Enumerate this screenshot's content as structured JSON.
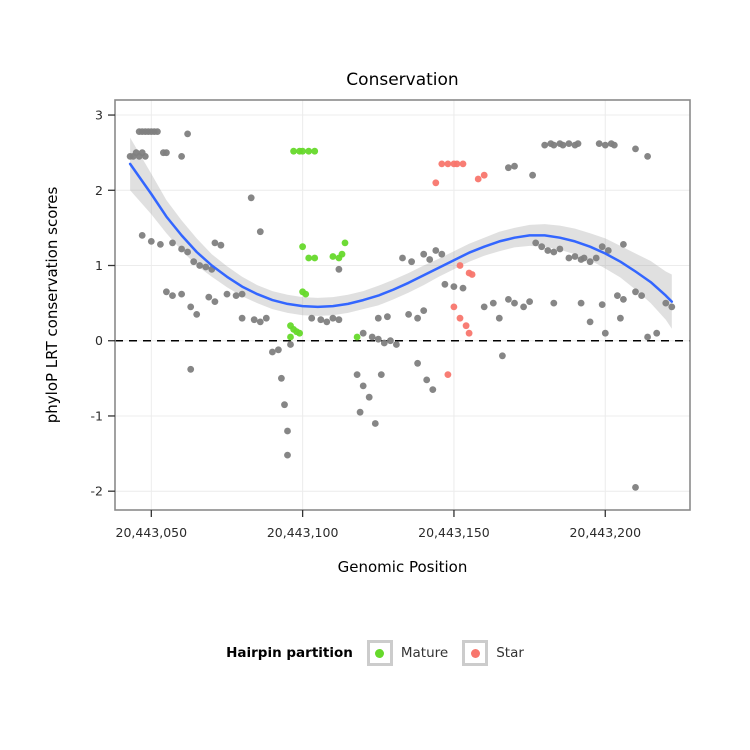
{
  "chart_data": {
    "type": "scatter",
    "title": "Conservation",
    "xlabel": "Genomic Position",
    "ylabel": "phyloP LRT conservation scores",
    "xlim": [
      20443038,
      20443228
    ],
    "ylim": [
      -2.25,
      3.2
    ],
    "grid": true,
    "reference_line": {
      "y": 0,
      "style": "dashed",
      "color": "#000000"
    },
    "x_ticks": [
      {
        "value": 20443050,
        "label": "20,443,050"
      },
      {
        "value": 20443100,
        "label": "20,443,100"
      },
      {
        "value": 20443150,
        "label": "20,443,150"
      },
      {
        "value": 20443200,
        "label": "20,443,200"
      }
    ],
    "y_ticks": [
      {
        "value": -2,
        "label": "-2"
      },
      {
        "value": -1,
        "label": "-1"
      },
      {
        "value": 0,
        "label": "0"
      },
      {
        "value": 1,
        "label": "1"
      },
      {
        "value": 2,
        "label": "2"
      },
      {
        "value": 3,
        "label": "3"
      }
    ],
    "colors": {
      "other": "#808080",
      "mature": "#66D92B",
      "star": "#F8766D",
      "smooth_line": "#3366FF",
      "band": "#999999",
      "band_opacity": 0.3,
      "grid": "#ECECEC",
      "panel_border": "#8A8A8A",
      "tick": "#333333"
    },
    "legend": {
      "title": "Hairpin partition",
      "position": "bottom",
      "entries": [
        {
          "label": "Mature",
          "color": "#66D92B"
        },
        {
          "label": "Star",
          "color": "#F8766D"
        }
      ]
    },
    "series": [
      {
        "name": "Other",
        "color": "#808080",
        "points": [
          [
            20443046,
            2.78
          ],
          [
            20443047,
            2.78
          ],
          [
            20443048,
            2.78
          ],
          [
            20443049,
            2.78
          ],
          [
            20443050,
            2.78
          ],
          [
            20443051,
            2.78
          ],
          [
            20443052,
            2.78
          ],
          [
            20443062,
            2.75
          ],
          [
            20443043,
            2.45
          ],
          [
            20443044,
            2.45
          ],
          [
            20443045,
            2.5
          ],
          [
            20443046,
            2.45
          ],
          [
            20443047,
            2.5
          ],
          [
            20443048,
            2.45
          ],
          [
            20443054,
            2.5
          ],
          [
            20443055,
            2.5
          ],
          [
            20443060,
            2.45
          ],
          [
            20443047,
            1.4
          ],
          [
            20443050,
            1.32
          ],
          [
            20443053,
            1.28
          ],
          [
            20443057,
            1.3
          ],
          [
            20443060,
            1.22
          ],
          [
            20443062,
            1.18
          ],
          [
            20443064,
            1.05
          ],
          [
            20443066,
            1.0
          ],
          [
            20443068,
            0.98
          ],
          [
            20443070,
            0.95
          ],
          [
            20443071,
            1.3
          ],
          [
            20443073,
            1.27
          ],
          [
            20443055,
            0.65
          ],
          [
            20443057,
            0.6
          ],
          [
            20443060,
            0.62
          ],
          [
            20443063,
            0.45
          ],
          [
            20443065,
            0.35
          ],
          [
            20443069,
            0.58
          ],
          [
            20443071,
            0.52
          ],
          [
            20443075,
            0.62
          ],
          [
            20443078,
            0.6
          ],
          [
            20443080,
            0.62
          ],
          [
            20443063,
            -0.38
          ],
          [
            20443083,
            1.9
          ],
          [
            20443086,
            1.45
          ],
          [
            20443080,
            0.3
          ],
          [
            20443084,
            0.28
          ],
          [
            20443086,
            0.25
          ],
          [
            20443088,
            0.3
          ],
          [
            20443090,
            -0.15
          ],
          [
            20443092,
            -0.12
          ],
          [
            20443093,
            -0.5
          ],
          [
            20443094,
            -0.85
          ],
          [
            20443095,
            -1.2
          ],
          [
            20443095,
            -1.52
          ],
          [
            20443096,
            -0.05
          ],
          [
            20443103,
            0.3
          ],
          [
            20443106,
            0.28
          ],
          [
            20443108,
            0.25
          ],
          [
            20443110,
            0.3
          ],
          [
            20443112,
            0.28
          ],
          [
            20443112,
            0.95
          ],
          [
            20443120,
            0.1
          ],
          [
            20443123,
            0.05
          ],
          [
            20443125,
            0.02
          ],
          [
            20443127,
            -0.03
          ],
          [
            20443129,
            0.0
          ],
          [
            20443131,
            -0.05
          ],
          [
            20443125,
            0.3
          ],
          [
            20443128,
            0.32
          ],
          [
            20443118,
            -0.45
          ],
          [
            20443120,
            -0.6
          ],
          [
            20443119,
            -0.95
          ],
          [
            20443122,
            -0.75
          ],
          [
            20443124,
            -1.1
          ],
          [
            20443126,
            -0.45
          ],
          [
            20443133,
            1.1
          ],
          [
            20443136,
            1.05
          ],
          [
            20443140,
            1.15
          ],
          [
            20443142,
            1.08
          ],
          [
            20443135,
            0.35
          ],
          [
            20443138,
            0.3
          ],
          [
            20443140,
            0.4
          ],
          [
            20443138,
            -0.3
          ],
          [
            20443141,
            -0.52
          ],
          [
            20443143,
            -0.65
          ],
          [
            20443144,
            1.2
          ],
          [
            20443146,
            1.15
          ],
          [
            20443147,
            0.75
          ],
          [
            20443150,
            0.72
          ],
          [
            20443153,
            0.7
          ],
          [
            20443160,
            0.45
          ],
          [
            20443163,
            0.5
          ],
          [
            20443165,
            0.3
          ],
          [
            20443166,
            -0.2
          ],
          [
            20443168,
            2.3
          ],
          [
            20443170,
            2.32
          ],
          [
            20443176,
            2.2
          ],
          [
            20443180,
            2.6
          ],
          [
            20443182,
            2.62
          ],
          [
            20443183,
            2.6
          ],
          [
            20443185,
            2.62
          ],
          [
            20443186,
            2.6
          ],
          [
            20443188,
            2.62
          ],
          [
            20443190,
            2.6
          ],
          [
            20443191,
            2.62
          ],
          [
            20443198,
            2.62
          ],
          [
            20443200,
            2.6
          ],
          [
            20443202,
            2.62
          ],
          [
            20443203,
            2.6
          ],
          [
            20443210,
            2.55
          ],
          [
            20443214,
            2.45
          ],
          [
            20443177,
            1.3
          ],
          [
            20443179,
            1.25
          ],
          [
            20443181,
            1.2
          ],
          [
            20443183,
            1.18
          ],
          [
            20443185,
            1.22
          ],
          [
            20443188,
            1.1
          ],
          [
            20443190,
            1.12
          ],
          [
            20443192,
            1.08
          ],
          [
            20443193,
            1.1
          ],
          [
            20443195,
            1.05
          ],
          [
            20443197,
            1.1
          ],
          [
            20443199,
            1.25
          ],
          [
            20443201,
            1.2
          ],
          [
            20443206,
            1.28
          ],
          [
            20443168,
            0.55
          ],
          [
            20443170,
            0.5
          ],
          [
            20443173,
            0.45
          ],
          [
            20443175,
            0.52
          ],
          [
            20443183,
            0.5
          ],
          [
            20443192,
            0.5
          ],
          [
            20443199,
            0.48
          ],
          [
            20443204,
            0.6
          ],
          [
            20443206,
            0.55
          ],
          [
            20443210,
            0.65
          ],
          [
            20443212,
            0.6
          ],
          [
            20443220,
            0.5
          ],
          [
            20443222,
            0.45
          ],
          [
            20443195,
            0.25
          ],
          [
            20443205,
            0.3
          ],
          [
            20443200,
            0.1
          ],
          [
            20443214,
            0.05
          ],
          [
            20443217,
            0.1
          ],
          [
            20443210,
            -1.95
          ]
        ]
      },
      {
        "name": "Mature",
        "color": "#66D92B",
        "points": [
          [
            20443097,
            2.52
          ],
          [
            20443099,
            2.52
          ],
          [
            20443100,
            2.52
          ],
          [
            20443102,
            2.52
          ],
          [
            20443104,
            2.52
          ],
          [
            20443100,
            1.25
          ],
          [
            20443102,
            1.1
          ],
          [
            20443104,
            1.1
          ],
          [
            20443110,
            1.12
          ],
          [
            20443112,
            1.1
          ],
          [
            20443113,
            1.15
          ],
          [
            20443114,
            1.3
          ],
          [
            20443100,
            0.65
          ],
          [
            20443101,
            0.62
          ],
          [
            20443096,
            0.2
          ],
          [
            20443097,
            0.15
          ],
          [
            20443098,
            0.12
          ],
          [
            20443099,
            0.1
          ],
          [
            20443096,
            0.05
          ],
          [
            20443118,
            0.05
          ]
        ]
      },
      {
        "name": "Star",
        "color": "#F8766D",
        "points": [
          [
            20443146,
            2.35
          ],
          [
            20443148,
            2.35
          ],
          [
            20443150,
            2.35
          ],
          [
            20443151,
            2.35
          ],
          [
            20443153,
            2.35
          ],
          [
            20443144,
            2.1
          ],
          [
            20443158,
            2.15
          ],
          [
            20443160,
            2.2
          ],
          [
            20443152,
            1.0
          ],
          [
            20443155,
            0.9
          ],
          [
            20443156,
            0.88
          ],
          [
            20443150,
            0.45
          ],
          [
            20443152,
            0.3
          ],
          [
            20443154,
            0.2
          ],
          [
            20443155,
            0.1
          ],
          [
            20443148,
            -0.45
          ]
        ]
      }
    ],
    "smooth": {
      "color": "#3366FF",
      "x": [
        20443043,
        20443050,
        20443055,
        20443060,
        20443065,
        20443070,
        20443075,
        20443080,
        20443085,
        20443090,
        20443095,
        20443100,
        20443105,
        20443110,
        20443115,
        20443120,
        20443125,
        20443130,
        20443135,
        20443140,
        20443145,
        20443150,
        20443155,
        20443160,
        20443165,
        20443170,
        20443175,
        20443180,
        20443185,
        20443190,
        20443195,
        20443200,
        20443205,
        20443210,
        20443215,
        20443220,
        20443222
      ],
      "y": [
        2.35,
        1.95,
        1.65,
        1.4,
        1.18,
        1.0,
        0.85,
        0.72,
        0.62,
        0.54,
        0.49,
        0.46,
        0.45,
        0.46,
        0.49,
        0.54,
        0.6,
        0.68,
        0.77,
        0.87,
        0.97,
        1.07,
        1.17,
        1.25,
        1.32,
        1.37,
        1.4,
        1.4,
        1.37,
        1.32,
        1.25,
        1.16,
        1.05,
        0.92,
        0.78,
        0.6,
        0.52
      ],
      "band_lower": [
        2.0,
        1.68,
        1.43,
        1.2,
        1.0,
        0.85,
        0.71,
        0.59,
        0.5,
        0.42,
        0.37,
        0.34,
        0.33,
        0.34,
        0.37,
        0.42,
        0.47,
        0.55,
        0.64,
        0.74,
        0.85,
        0.95,
        1.05,
        1.13,
        1.19,
        1.24,
        1.26,
        1.25,
        1.21,
        1.15,
        1.07,
        0.96,
        0.84,
        0.68,
        0.5,
        0.28,
        0.16
      ],
      "band_upper": [
        2.7,
        2.22,
        1.87,
        1.6,
        1.36,
        1.15,
        0.99,
        0.85,
        0.74,
        0.66,
        0.61,
        0.58,
        0.57,
        0.58,
        0.61,
        0.66,
        0.73,
        0.81,
        0.9,
        1.0,
        1.09,
        1.19,
        1.29,
        1.37,
        1.45,
        1.5,
        1.54,
        1.55,
        1.53,
        1.49,
        1.43,
        1.36,
        1.26,
        1.16,
        1.06,
        0.92,
        0.88
      ]
    }
  }
}
